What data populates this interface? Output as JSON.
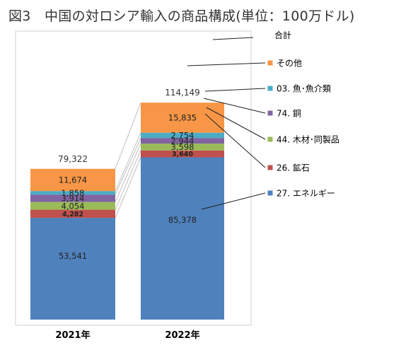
{
  "chart_data": {
    "type": "bar",
    "stacked": true,
    "title": "図3　中国の対ロシア輸入の商品構成(単位：100万ドル)",
    "categories": [
      "2021年",
      "2022年"
    ],
    "totals": [
      "79,322",
      "114,149"
    ],
    "total_label": "合計",
    "series": [
      {
        "name": "27. エネルギー",
        "values": [
          53541,
          85378
        ],
        "labels": [
          "53,541",
          "85,378"
        ],
        "color": "#4f81bd"
      },
      {
        "name": "26. 鉱石",
        "values": [
          4282,
          3640
        ],
        "labels": [
          "4,282",
          "3,640"
        ],
        "color": "#c0504d"
      },
      {
        "name": "44. 木材･同製品",
        "values": [
          4054,
          3598
        ],
        "labels": [
          "4,054",
          "3,598"
        ],
        "color": "#9bbb59"
      },
      {
        "name": "74. 銅",
        "values": [
          3914,
          2944
        ],
        "labels": [
          "3,914",
          "2,944"
        ],
        "color": "#8064a2"
      },
      {
        "name": "03. 魚･魚介類",
        "values": [
          1858,
          2754
        ],
        "labels": [
          "1,858",
          "2,754"
        ],
        "color": "#4bacc6"
      },
      {
        "name": "その他",
        "values": [
          11674,
          15835
        ],
        "labels": [
          "11,674",
          "15,835"
        ],
        "color": "#f79646"
      }
    ],
    "legend_placement": "right",
    "grid": false
  }
}
